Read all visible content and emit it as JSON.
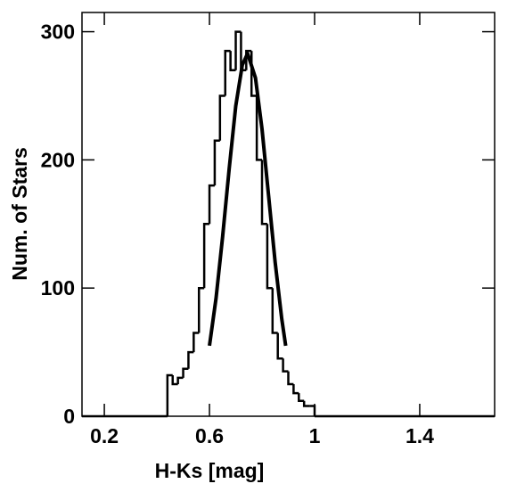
{
  "chart_data": {
    "type": "histogram",
    "xlabel": "H-Ks [mag]",
    "ylabel": "Num. of Stars",
    "bins": [
      0.44,
      0.46,
      0.48,
      0.5,
      0.52,
      0.54,
      0.56,
      0.58,
      0.6,
      0.62,
      0.64,
      0.66,
      0.68,
      0.7,
      0.72,
      0.74,
      0.76,
      0.78,
      0.8,
      0.82,
      0.84,
      0.86,
      0.88,
      0.9,
      0.92,
      0.94,
      0.96,
      0.98,
      1.0
    ],
    "values": [
      32,
      25,
      30,
      37,
      50,
      65,
      100,
      150,
      180,
      215,
      250,
      285,
      270,
      300,
      270,
      285,
      250,
      200,
      150,
      100,
      65,
      45,
      35,
      25,
      18,
      12,
      8,
      8
    ],
    "color": "#000000",
    "fit": {
      "x": [
        0.6,
        0.625,
        0.65,
        0.675,
        0.7,
        0.725,
        0.745,
        0.775,
        0.8,
        0.825,
        0.85,
        0.875,
        0.89
      ],
      "values": [
        55,
        92,
        140,
        193,
        242,
        274,
        283,
        264,
        224,
        172,
        120,
        76,
        55
      ],
      "color": "#000000"
    },
    "xlim": [
      0.115,
      1.685
    ],
    "xticks": [
      {
        "value": 0.2,
        "label": "0.2"
      },
      {
        "value": 0.6,
        "label": "0.6"
      },
      1,
      {
        "value": 1.4,
        "label": "1.4"
      }
    ],
    "ylim": [
      0,
      315
    ],
    "yticks": [
      0,
      100,
      200,
      300
    ]
  }
}
